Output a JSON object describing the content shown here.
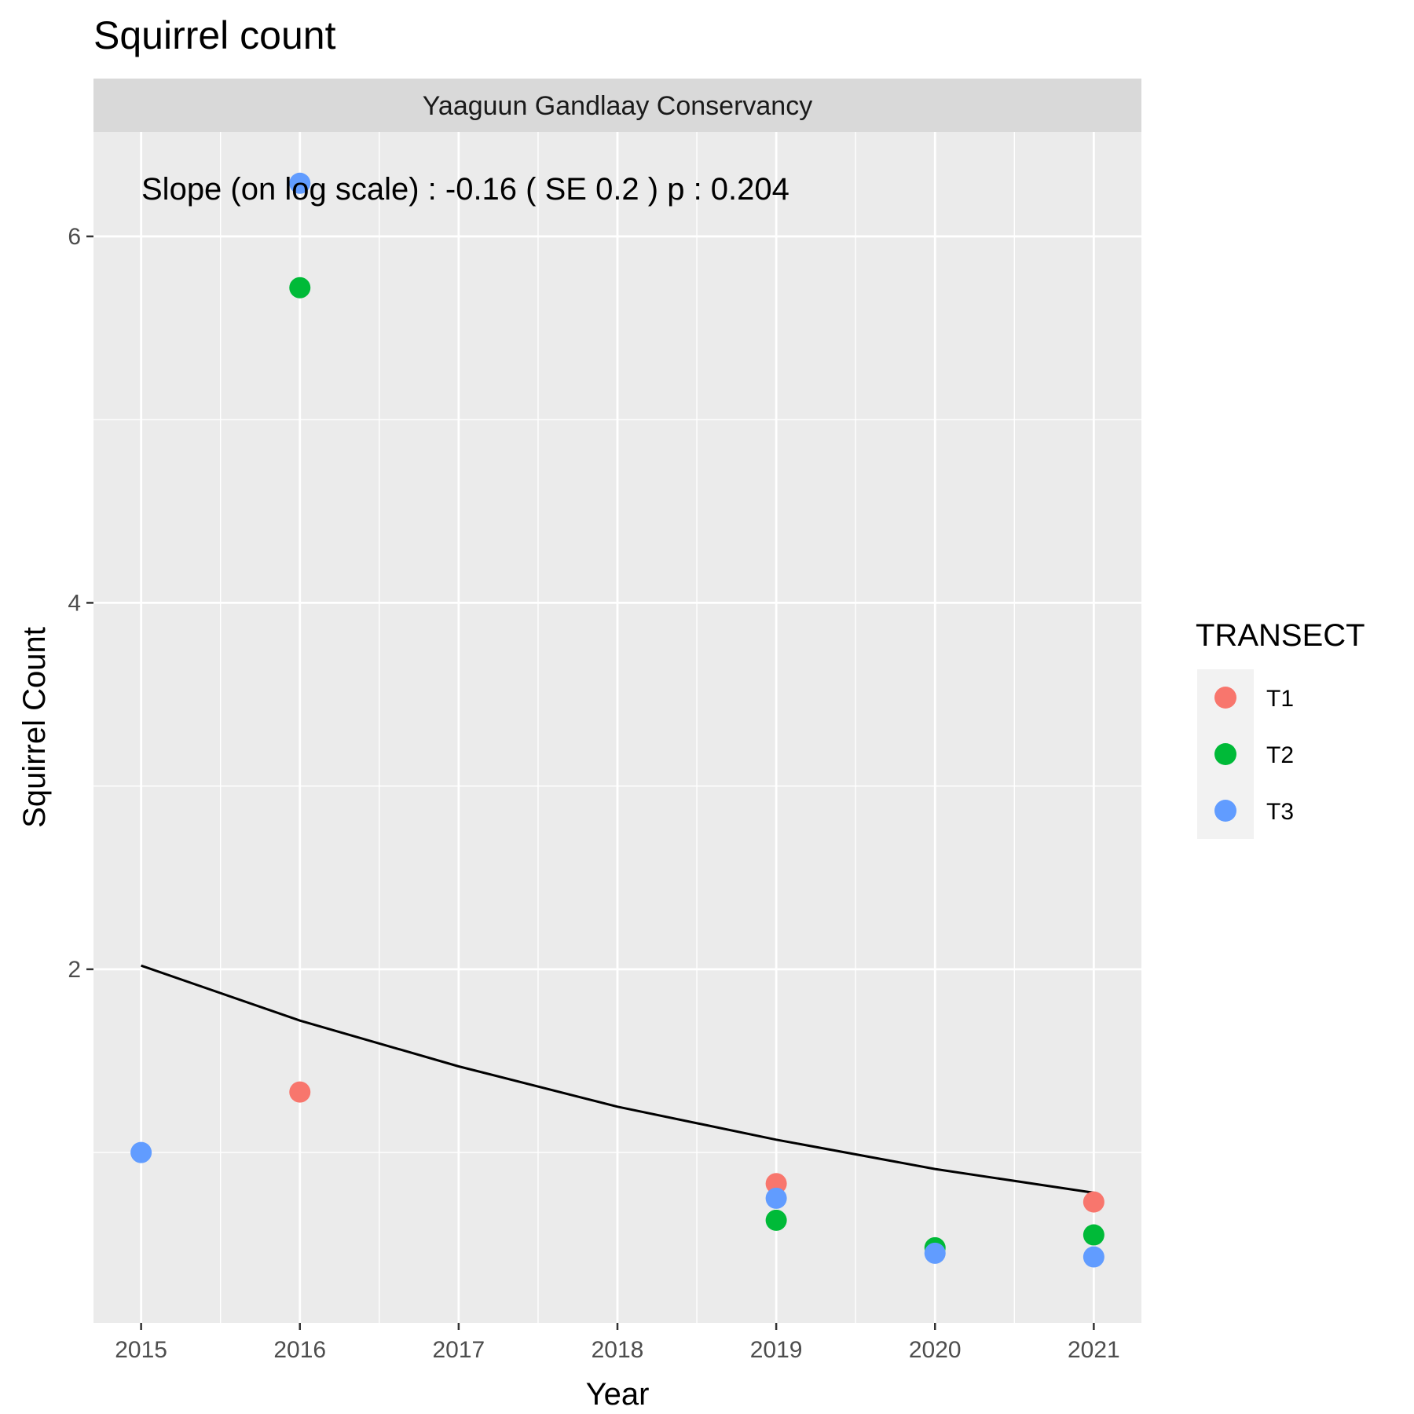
{
  "chart_data": {
    "type": "scatter",
    "title": "Squirrel count",
    "facet_label": "Yaaguun Gandlaay Conservancy",
    "annotation": "Slope (on log scale) :  -0.16  ( SE  0.2 )  p : 0.204",
    "xlabel": "Year",
    "ylabel": "Squirrel Count",
    "xlim": [
      2014.7,
      2021.3
    ],
    "ylim": [
      0.07,
      6.57
    ],
    "x_ticks": [
      2015,
      2016,
      2017,
      2018,
      2019,
      2020,
      2021
    ],
    "y_ticks": [
      2,
      4,
      6
    ],
    "grid": true,
    "legend": {
      "title": "TRANSECT",
      "position": "right",
      "entries": [
        "T1",
        "T2",
        "T3"
      ]
    },
    "colors": {
      "T1": "#F8766D",
      "T2": "#00BA38",
      "T3": "#619CFF",
      "panel": "#EBEBEB",
      "strip": "#D9D9D9",
      "trend": "#000000"
    },
    "series": [
      {
        "name": "T1",
        "points": [
          {
            "x": 2016,
            "y": 1.33
          },
          {
            "x": 2019,
            "y": 0.83
          },
          {
            "x": 2021,
            "y": 0.73
          }
        ]
      },
      {
        "name": "T2",
        "points": [
          {
            "x": 2016,
            "y": 5.72
          },
          {
            "x": 2019,
            "y": 0.63
          },
          {
            "x": 2020,
            "y": 0.48
          },
          {
            "x": 2021,
            "y": 0.55
          }
        ]
      },
      {
        "name": "T3",
        "points": [
          {
            "x": 2015,
            "y": 1.0
          },
          {
            "x": 2016,
            "y": 6.29
          },
          {
            "x": 2019,
            "y": 0.75
          },
          {
            "x": 2020,
            "y": 0.45
          },
          {
            "x": 2021,
            "y": 0.43
          }
        ]
      }
    ],
    "trend_line": {
      "x": [
        2015,
        2016,
        2017,
        2018,
        2019,
        2020,
        2021
      ],
      "y": [
        2.02,
        1.72,
        1.47,
        1.25,
        1.07,
        0.91,
        0.78
      ]
    }
  }
}
